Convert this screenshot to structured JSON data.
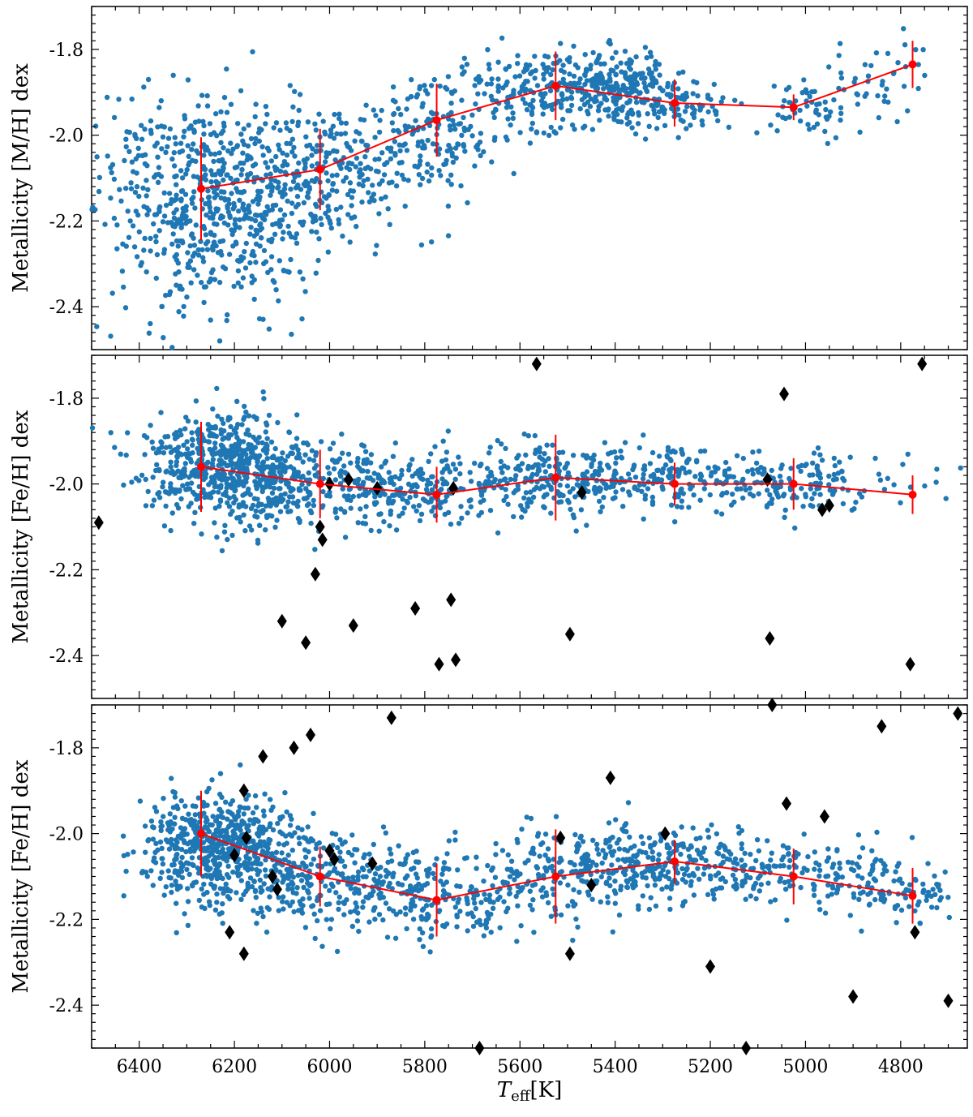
{
  "chart_data": [
    {
      "type": "scatter",
      "panel": "top",
      "ylabel": "Metallicity [M/H] dex",
      "xlim": [
        6500,
        4660
      ],
      "ylim": [
        -2.5,
        -1.7
      ],
      "yticks": [
        -2.4,
        -2.2,
        -2.0,
        -1.8
      ],
      "ytick_labels": [
        "-2.4",
        "-2.2",
        "-2.0",
        "-1.8"
      ],
      "scatter_color": "#1f77b4",
      "cloud": [
        {
          "cx": 6230,
          "cy": -2.15,
          "sx": 110,
          "sy": 0.12,
          "n": 520
        },
        {
          "cx": 6330,
          "cy": -2.2,
          "sx": 120,
          "sy": 0.14,
          "n": 160
        },
        {
          "cx": 5980,
          "cy": -2.08,
          "sx": 110,
          "sy": 0.08,
          "n": 260
        },
        {
          "cx": 5760,
          "cy": -1.98,
          "sx": 80,
          "sy": 0.07,
          "n": 150
        },
        {
          "cx": 5540,
          "cy": -1.89,
          "sx": 90,
          "sy": 0.045,
          "n": 200
        },
        {
          "cx": 5400,
          "cy": -1.88,
          "sx": 60,
          "sy": 0.04,
          "n": 180
        },
        {
          "cx": 5280,
          "cy": -1.93,
          "sx": 60,
          "sy": 0.035,
          "n": 110
        },
        {
          "cx": 5000,
          "cy": -1.94,
          "sx": 40,
          "sy": 0.03,
          "n": 50
        },
        {
          "cx": 4850,
          "cy": -1.87,
          "sx": 60,
          "sy": 0.05,
          "n": 45
        }
      ],
      "binned_teff": [
        6270,
        6020,
        5775,
        5525,
        5275,
        5025,
        4775
      ],
      "binned_values": [
        -2.125,
        -2.08,
        -1.965,
        -1.885,
        -1.925,
        -1.935,
        -1.835
      ],
      "binned_errors": [
        0.12,
        0.095,
        0.085,
        0.08,
        0.055,
        0.03,
        0.055
      ],
      "binned_color": "#ff0000",
      "diamonds_teff": [],
      "diamonds_values": []
    },
    {
      "type": "scatter",
      "panel": "middle",
      "ylabel": "Metallicity [Fe/H] dex",
      "xlim": [
        6500,
        4660
      ],
      "ylim": [
        -2.5,
        -1.7
      ],
      "yticks": [
        -2.4,
        -2.2,
        -2.0,
        -1.8
      ],
      "ytick_labels": [
        "-2.4",
        "-2.2",
        "-2.0",
        "-1.8"
      ],
      "scatter_color": "#1f77b4",
      "cloud": [
        {
          "cx": 6230,
          "cy": -1.95,
          "sx": 80,
          "sy": 0.06,
          "n": 480
        },
        {
          "cx": 6100,
          "cy": -2.0,
          "sx": 110,
          "sy": 0.06,
          "n": 250
        },
        {
          "cx": 5850,
          "cy": -2.01,
          "sx": 120,
          "sy": 0.04,
          "n": 230
        },
        {
          "cx": 5550,
          "cy": -1.99,
          "sx": 110,
          "sy": 0.04,
          "n": 220
        },
        {
          "cx": 5300,
          "cy": -1.99,
          "sx": 110,
          "sy": 0.035,
          "n": 210
        },
        {
          "cx": 5000,
          "cy": -2.0,
          "sx": 110,
          "sy": 0.03,
          "n": 140
        }
      ],
      "binned_teff": [
        6270,
        6020,
        5775,
        5525,
        5275,
        5025,
        4775
      ],
      "binned_values": [
        -1.96,
        -2.0,
        -2.025,
        -1.985,
        -2.0,
        -2.0,
        -2.025
      ],
      "binned_errors": [
        0.105,
        0.08,
        0.065,
        0.1,
        0.05,
        0.06,
        0.045
      ],
      "binned_color": "#ff0000",
      "diamonds_teff": [
        6485,
        6020,
        6015,
        6000,
        6030,
        5960,
        5900,
        5740,
        5470,
        5080,
        4965,
        4950,
        6100,
        6050,
        5950,
        5820,
        5745,
        5495,
        5075,
        4780,
        5770,
        5735,
        5565,
        5045,
        4755
      ],
      "diamonds_values": [
        -2.09,
        -2.1,
        -2.13,
        -2.0,
        -2.21,
        -1.99,
        -2.01,
        -2.01,
        -2.02,
        -1.99,
        -2.06,
        -2.05,
        -2.32,
        -2.37,
        -2.33,
        -2.29,
        -2.27,
        -2.35,
        -2.36,
        -2.42,
        -2.42,
        -2.41,
        -1.72,
        -1.79,
        -1.72
      ]
    },
    {
      "type": "scatter",
      "panel": "bottom",
      "ylabel": "Metallicity [Fe/H] dex",
      "xlabel_main": "T",
      "xlabel_sub": "eff",
      "xlabel_unit": "[K]",
      "xlim": [
        6500,
        4660
      ],
      "ylim": [
        -2.5,
        -1.7
      ],
      "xticks": [
        6400,
        6200,
        6000,
        5800,
        5600,
        5400,
        5200,
        5000,
        4800
      ],
      "xtick_labels": [
        "6400",
        "6200",
        "6000",
        "5800",
        "5600",
        "5400",
        "5200",
        "5000",
        "4800"
      ],
      "yticks": [
        -2.4,
        -2.2,
        -2.0,
        -1.8
      ],
      "ytick_labels": [
        "-2.4",
        "-2.2",
        "-2.0",
        "-1.8"
      ],
      "scatter_color": "#1f77b4",
      "cloud": [
        {
          "cx": 6250,
          "cy": -2.02,
          "sx": 70,
          "sy": 0.06,
          "n": 420
        },
        {
          "cx": 6150,
          "cy": -2.07,
          "sx": 90,
          "sy": 0.06,
          "n": 250
        },
        {
          "cx": 5950,
          "cy": -2.12,
          "sx": 110,
          "sy": 0.05,
          "n": 230
        },
        {
          "cx": 5750,
          "cy": -2.15,
          "sx": 100,
          "sy": 0.05,
          "n": 150
        },
        {
          "cx": 5500,
          "cy": -2.09,
          "sx": 110,
          "sy": 0.05,
          "n": 210
        },
        {
          "cx": 5300,
          "cy": -2.06,
          "sx": 100,
          "sy": 0.04,
          "n": 200
        },
        {
          "cx": 5050,
          "cy": -2.09,
          "sx": 110,
          "sy": 0.04,
          "n": 160
        },
        {
          "cx": 4820,
          "cy": -2.13,
          "sx": 80,
          "sy": 0.04,
          "n": 100
        }
      ],
      "binned_teff": [
        6270,
        6020,
        5775,
        5525,
        5275,
        5025,
        4775
      ],
      "binned_values": [
        -2.0,
        -2.1,
        -2.155,
        -2.1,
        -2.065,
        -2.1,
        -2.145
      ],
      "binned_errors": [
        0.1,
        0.07,
        0.085,
        0.11,
        0.05,
        0.065,
        0.065
      ],
      "binned_color": "#ff0000",
      "diamonds_teff": [
        6200,
        6175,
        6180,
        6120,
        6110,
        6000,
        5990,
        5910,
        5870,
        6140,
        6075,
        6040,
        5410,
        5515,
        5450,
        5495,
        5295,
        5200,
        5040,
        4960,
        4900,
        4840,
        4770,
        4700,
        4680,
        6210,
        6180,
        5685,
        5125,
        5070
      ],
      "diamonds_values": [
        -2.05,
        -2.01,
        -1.9,
        -2.1,
        -2.13,
        -2.04,
        -2.06,
        -2.07,
        -1.73,
        -1.82,
        -1.8,
        -1.77,
        -1.87,
        -2.01,
        -2.12,
        -2.28,
        -2.0,
        -2.31,
        -1.93,
        -1.96,
        -2.38,
        -1.75,
        -2.23,
        -2.39,
        -1.72,
        -2.23,
        -2.28,
        -2.5,
        -2.5,
        -1.7
      ]
    }
  ]
}
